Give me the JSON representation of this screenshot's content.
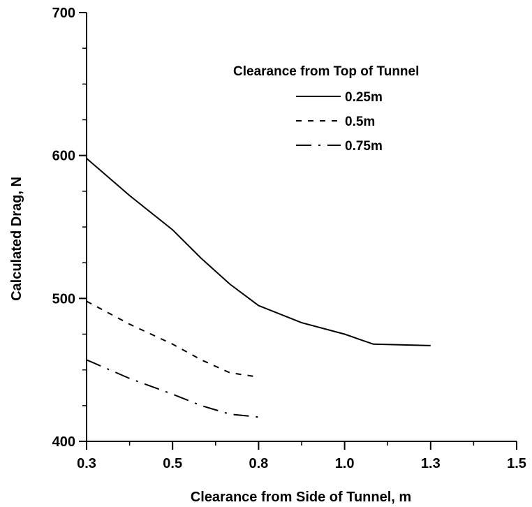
{
  "chart_data": {
    "type": "line",
    "title": "",
    "xlabel": "Clearance from Side of Tunnel, m",
    "ylabel": "Calculated Drag, N",
    "xlim": [
      0.3,
      1.55
    ],
    "ylim": [
      400,
      700
    ],
    "x_ticks": [
      0.3,
      0.5,
      0.8,
      1.0,
      1.3,
      1.5
    ],
    "x_tick_labels": [
      "0.3",
      "0.5",
      "0.8",
      "1.0",
      "1.3",
      "1.5"
    ],
    "y_ticks": [
      400,
      500,
      600,
      700
    ],
    "y_tick_labels": [
      "400",
      "500",
      "600",
      "700"
    ],
    "grid": false,
    "legend_title": "Clearance from Top of Tunnel",
    "legend_position": "top-right",
    "series": [
      {
        "name": "0.25m",
        "style": "solid",
        "points": [
          [
            0.3,
            598
          ],
          [
            0.4,
            572
          ],
          [
            0.5,
            548
          ],
          [
            0.6,
            528
          ],
          [
            0.7,
            510
          ],
          [
            0.8,
            495
          ],
          [
            0.9,
            483
          ],
          [
            1.0,
            475
          ],
          [
            1.1,
            468
          ],
          [
            1.3,
            467
          ]
        ]
      },
      {
        "name": "0.5m",
        "style": "dashed",
        "points": [
          [
            0.3,
            498
          ],
          [
            0.4,
            482
          ],
          [
            0.5,
            468
          ],
          [
            0.6,
            457
          ],
          [
            0.7,
            448
          ],
          [
            0.8,
            445
          ]
        ]
      },
      {
        "name": "0.75m",
        "style": "dashdot",
        "points": [
          [
            0.3,
            457
          ],
          [
            0.4,
            444
          ],
          [
            0.5,
            433
          ],
          [
            0.6,
            425
          ],
          [
            0.7,
            419
          ],
          [
            0.8,
            417
          ]
        ]
      }
    ]
  }
}
